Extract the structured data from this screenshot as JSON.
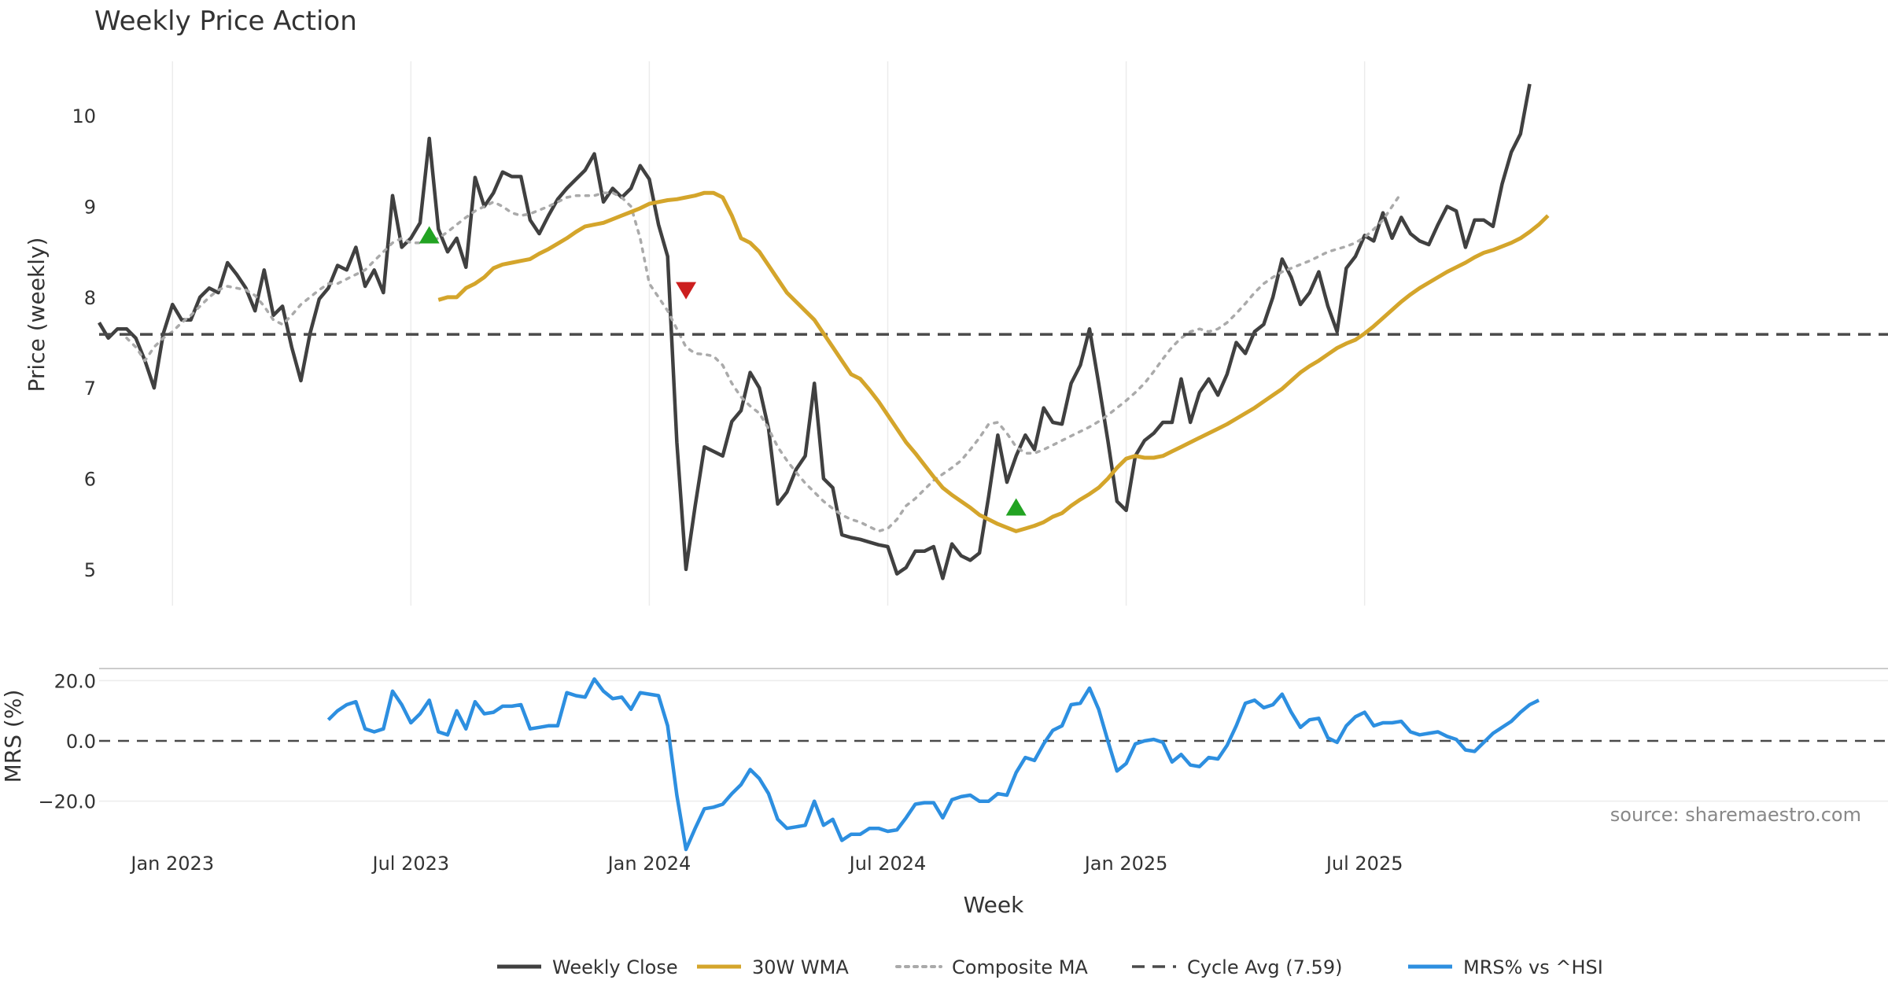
{
  "chart_data": {
    "type": "line",
    "title": "Weekly Price Action",
    "source_note": "source: sharemaestro.com",
    "xlabel": "Week",
    "x_ticks": [
      "Jan 2023",
      "Jul 2023",
      "Jan 2024",
      "Jul 2024",
      "Jan 2025",
      "Jul 2025"
    ],
    "price_panel": {
      "ylabel": "Price (weekly)",
      "ylim": [
        4.6,
        10.6
      ],
      "y_ticks": [
        "5",
        "6",
        "7",
        "8",
        "9",
        "10"
      ],
      "start_week_offset": -8,
      "series": [
        {
          "name": "Weekly Close",
          "color": "#404040",
          "style": "solid",
          "start": 0,
          "values": [
            7.72,
            7.55,
            7.65,
            7.65,
            7.55,
            7.3,
            7.0,
            7.6,
            7.92,
            7.75,
            7.75,
            8.0,
            8.1,
            8.05,
            8.38,
            8.25,
            8.1,
            7.85,
            8.3,
            7.8,
            7.9,
            7.45,
            7.08,
            7.6,
            7.98,
            8.1,
            8.35,
            8.3,
            8.55,
            8.12,
            8.3,
            8.05,
            9.12,
            8.55,
            8.65,
            8.82,
            9.75,
            8.75,
            8.5,
            8.65,
            8.33,
            9.32,
            9.0,
            9.15,
            9.38,
            9.33,
            9.33,
            8.85,
            8.7,
            8.9,
            9.08,
            9.2,
            9.3,
            9.4,
            9.58,
            9.05,
            9.2,
            9.1,
            9.2,
            9.45,
            9.3,
            8.8,
            8.45,
            6.4,
            5.0,
            5.7,
            6.35,
            6.3,
            6.25,
            6.63,
            6.75,
            7.17,
            7.0,
            6.55,
            5.72,
            5.85,
            6.1,
            6.25,
            7.05,
            6.0,
            5.9,
            5.38,
            5.35,
            5.33,
            5.3,
            5.27,
            5.25,
            4.95,
            5.02,
            5.2,
            5.2,
            5.25,
            4.9,
            5.28,
            5.15,
            5.1,
            5.18,
            5.8,
            6.48,
            5.96,
            6.25,
            6.48,
            6.32,
            6.78,
            6.62,
            6.6,
            7.05,
            7.25,
            7.65,
            7.05,
            6.42,
            5.75,
            5.65,
            6.25,
            6.42,
            6.5,
            6.62,
            6.62,
            7.1,
            6.62,
            6.95,
            7.1,
            6.92,
            7.15,
            7.5,
            7.38,
            7.62,
            7.7,
            8.0,
            8.42,
            8.22,
            7.92,
            8.05,
            8.28,
            7.9,
            7.62,
            8.32,
            8.45,
            8.68,
            8.62,
            8.93,
            8.65,
            8.88,
            8.7,
            8.62,
            8.58,
            8.8,
            9.0,
            8.95,
            8.55,
            8.85,
            8.85,
            8.78,
            9.25,
            9.6,
            9.8,
            10.35
          ]
        },
        {
          "name": "30W WMA",
          "color": "#d4a52b",
          "style": "solid",
          "start": 37,
          "values": [
            7.97,
            8.0,
            8.0,
            8.1,
            8.15,
            8.22,
            8.32,
            8.36,
            8.38,
            8.4,
            8.42,
            8.48,
            8.53,
            8.59,
            8.65,
            8.72,
            8.78,
            8.8,
            8.82,
            8.86,
            8.9,
            8.94,
            8.98,
            9.03,
            9.05,
            9.07,
            9.08,
            9.1,
            9.12,
            9.15,
            9.15,
            9.1,
            8.9,
            8.65,
            8.6,
            8.5,
            8.35,
            8.2,
            8.05,
            7.95,
            7.85,
            7.75,
            7.6,
            7.45,
            7.3,
            7.15,
            7.1,
            6.98,
            6.85,
            6.7,
            6.55,
            6.4,
            6.28,
            6.15,
            6.02,
            5.9,
            5.82,
            5.75,
            5.68,
            5.6,
            5.55,
            5.5,
            5.46,
            5.42,
            5.45,
            5.48,
            5.52,
            5.58,
            5.62,
            5.7,
            5.77,
            5.83,
            5.9,
            6.0,
            6.12,
            6.22,
            6.25,
            6.23,
            6.23,
            6.25,
            6.3,
            6.35,
            6.4,
            6.45,
            6.5,
            6.55,
            6.6,
            6.66,
            6.72,
            6.78,
            6.85,
            6.92,
            6.99,
            7.08,
            7.17,
            7.24,
            7.3,
            7.37,
            7.44,
            7.49,
            7.53,
            7.6,
            7.68,
            7.77,
            7.86,
            7.95,
            8.03,
            8.1,
            8.16,
            8.22,
            8.28,
            8.33,
            8.38,
            8.44,
            8.49,
            8.52,
            8.56,
            8.6,
            8.65,
            8.72,
            8.8,
            8.9
          ]
        },
        {
          "name": "Composite MA",
          "color": "#aaaaaa",
          "style": "dotted",
          "start": 3,
          "values": [
            7.55,
            7.45,
            7.3,
            7.45,
            7.55,
            7.62,
            7.72,
            7.8,
            7.9,
            8.0,
            8.08,
            8.12,
            8.1,
            8.08,
            8.02,
            7.9,
            7.75,
            7.7,
            7.8,
            7.92,
            8.0,
            8.08,
            8.15,
            8.15,
            8.2,
            8.25,
            8.3,
            8.4,
            8.5,
            8.6,
            8.65,
            8.6,
            8.6,
            8.62,
            8.65,
            8.72,
            8.8,
            8.88,
            8.95,
            9.0,
            9.05,
            9.0,
            8.93,
            8.9,
            8.92,
            8.96,
            9.0,
            9.05,
            9.1,
            9.12,
            9.12,
            9.12,
            9.15,
            9.15,
            9.1,
            9.0,
            8.65,
            8.15,
            8.0,
            7.85,
            7.65,
            7.45,
            7.38,
            7.37,
            7.35,
            7.25,
            7.05,
            6.9,
            6.8,
            6.72,
            6.55,
            6.35,
            6.2,
            6.07,
            5.95,
            5.85,
            5.75,
            5.67,
            5.6,
            5.55,
            5.52,
            5.47,
            5.42,
            5.45,
            5.55,
            5.7,
            5.78,
            5.88,
            5.98,
            6.05,
            6.12,
            6.2,
            6.32,
            6.45,
            6.6,
            6.62,
            6.5,
            6.35,
            6.28,
            6.28,
            6.32,
            6.37,
            6.42,
            6.47,
            6.52,
            6.57,
            6.63,
            6.7,
            6.78,
            6.86,
            6.95,
            7.05,
            7.18,
            7.32,
            7.45,
            7.55,
            7.62,
            7.65,
            7.62,
            7.65,
            7.72,
            7.82,
            7.93,
            8.05,
            8.15,
            8.22,
            8.28,
            8.32,
            8.36,
            8.4,
            8.45,
            8.5,
            8.53,
            8.56,
            8.6,
            8.66,
            8.75,
            8.85,
            9.0,
            9.15
          ]
        },
        {
          "name": "Cycle Avg (7.59)",
          "color": "#4a4a4a",
          "style": "dashed",
          "constant": 7.59
        }
      ],
      "markers": [
        {
          "type": "buy",
          "week": 36,
          "y": 8.68,
          "color": "#22a322"
        },
        {
          "type": "sell",
          "week": 64,
          "y": 8.08,
          "color": "#cc1f1f"
        },
        {
          "type": "buy",
          "week": 100,
          "y": 5.68,
          "color": "#22a322"
        }
      ]
    },
    "mrs_panel": {
      "ylabel": "MRS (%)",
      "ylim": [
        -36,
        24
      ],
      "y_ticks": [
        "20.0",
        "0.0",
        "−20.0"
      ],
      "zero_line": 0,
      "series": [
        {
          "name": "MRS% vs ^HSI",
          "color": "#2d8fe0",
          "style": "solid",
          "start": 25,
          "values": [
            7,
            10,
            12,
            13,
            4,
            3,
            4,
            16.5,
            12,
            6,
            9,
            13.5,
            3,
            2,
            10,
            4,
            13,
            9,
            9.5,
            11.5,
            11.5,
            12,
            4,
            4.5,
            5,
            5,
            16,
            15,
            14.5,
            20.5,
            16.5,
            14,
            14.5,
            10.5,
            16,
            15.5,
            15,
            5,
            -18,
            -36,
            -29,
            -22.5,
            -22,
            -21,
            -17.5,
            -14.5,
            -9.5,
            -12.5,
            -17.5,
            -26,
            -29,
            -28.5,
            -28,
            -20,
            -28,
            -26,
            -33,
            -31,
            -31,
            -29,
            -29,
            -30,
            -29.5,
            -25.5,
            -21,
            -20.5,
            -20.5,
            -25.5,
            -19.5,
            -18.5,
            -18,
            -20,
            -20,
            -17.5,
            -18,
            -10.5,
            -5.5,
            -6.5,
            -1,
            3.5,
            5,
            12,
            12.5,
            17.5,
            10.5,
            0,
            -10,
            -7.5,
            -1,
            0,
            0.5,
            -0.5,
            -7,
            -4.5,
            -8,
            -8.5,
            -5.5,
            -6,
            -1.5,
            5,
            12.5,
            13.5,
            11,
            12,
            15.5,
            9.5,
            4.5,
            7,
            7.5,
            1,
            -0.5,
            5,
            8,
            9.5,
            5,
            6,
            6,
            6.5,
            3,
            2,
            2.5,
            3,
            1.5,
            0.5,
            -3,
            -3.5,
            -0.5,
            2.5,
            4.5,
            6.5,
            9.5,
            12,
            13.5
          ]
        }
      ]
    },
    "legend": {
      "placement": "bottom-center",
      "entries": [
        {
          "label": "Weekly Close",
          "color": "#404040",
          "style": "solid"
        },
        {
          "label": "30W WMA",
          "color": "#d4a52b",
          "style": "solid"
        },
        {
          "label": "Composite MA",
          "color": "#aaaaaa",
          "style": "dotted"
        },
        {
          "label": "Cycle Avg (7.59)",
          "color": "#4a4a4a",
          "style": "dashed"
        },
        {
          "label": "MRS% vs ^HSI",
          "color": "#2d8fe0",
          "style": "solid"
        }
      ]
    }
  }
}
